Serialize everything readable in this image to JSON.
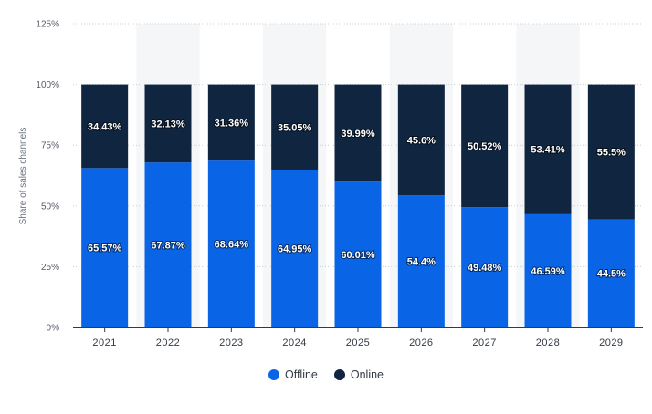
{
  "chart_data": {
    "type": "bar",
    "stacked": true,
    "title": "",
    "xlabel": "",
    "ylabel": "Share of sales channels",
    "ylim": [
      0,
      125
    ],
    "yticks": [
      0,
      25,
      50,
      75,
      100,
      125
    ],
    "ytick_labels": [
      "0%",
      "25%",
      "50%",
      "75%",
      "100%",
      "125%"
    ],
    "categories": [
      "2021",
      "2022",
      "2023",
      "2024",
      "2025",
      "2026",
      "2027",
      "2028",
      "2029"
    ],
    "series": [
      {
        "name": "Offline",
        "color": "#0a64e6",
        "values": [
          65.57,
          67.87,
          68.64,
          64.95,
          60.01,
          54.4,
          49.48,
          46.59,
          44.5
        ],
        "labels": [
          "65.57%",
          "67.87%",
          "68.64%",
          "64.95%",
          "60.01%",
          "54.4%",
          "49.48%",
          "46.59%",
          "44.5%"
        ]
      },
      {
        "name": "Online",
        "color": "#0f2540",
        "values": [
          34.43,
          32.13,
          31.36,
          35.05,
          39.99,
          45.6,
          50.52,
          53.41,
          55.5
        ],
        "labels": [
          "34.43%",
          "32.13%",
          "31.36%",
          "35.05%",
          "39.99%",
          "45.6%",
          "50.52%",
          "53.41%",
          "55.5%"
        ]
      }
    ],
    "grid": true,
    "legend": "bottom-center"
  }
}
